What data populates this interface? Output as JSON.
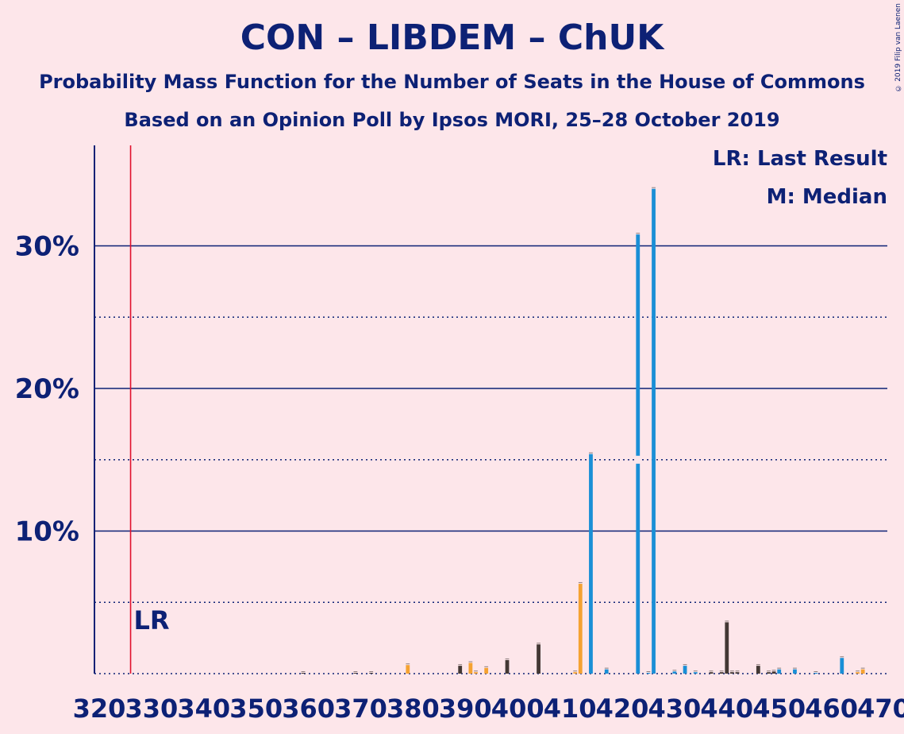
{
  "title": "CON – LIBDEM – ChUK",
  "subtitle1": "Probability Mass Function for the Number of Seats in the House of Commons",
  "subtitle2": "Based on an Opinion Poll by Ipsos MORI, 25–28 October 2019",
  "copyright": "© 2019 Filip van Laenen",
  "legend": {
    "lr": "LR: Last Result",
    "median": "M: Median"
  },
  "chart_data": {
    "type": "bar",
    "x_range": [
      320,
      470
    ],
    "y_range": [
      0,
      37
    ],
    "y_ticks": [
      {
        "value": 10,
        "label": "10%"
      },
      {
        "value": 20,
        "label": "20%"
      },
      {
        "value": 30,
        "label": "30%"
      }
    ],
    "y_minor": [
      5,
      15,
      25
    ],
    "x_ticks": [
      320,
      330,
      340,
      350,
      360,
      370,
      380,
      390,
      400,
      410,
      420,
      430,
      440,
      450,
      460,
      470
    ],
    "last_result": {
      "x": 326,
      "label": "LR"
    },
    "median": {
      "x": 423,
      "label": "M"
    },
    "colors": {
      "blue": "#1a8fd6",
      "orange": "#f5a231",
      "dark": "#433834",
      "lr_line": "#e0102c",
      "axis": "#0d2175"
    },
    "bars": [
      {
        "x": 359,
        "value": 0.05,
        "color": "dark"
      },
      {
        "x": 369,
        "value": 0.04,
        "color": "dark"
      },
      {
        "x": 372,
        "value": 0.05,
        "color": "dark"
      },
      {
        "x": 379,
        "value": 0.6,
        "color": "orange"
      },
      {
        "x": 389,
        "value": 0.55,
        "color": "dark"
      },
      {
        "x": 391,
        "value": 0.75,
        "color": "orange"
      },
      {
        "x": 392,
        "value": 0.1,
        "color": "orange"
      },
      {
        "x": 394,
        "value": 0.4,
        "color": "orange"
      },
      {
        "x": 398,
        "value": 0.95,
        "color": "dark"
      },
      {
        "x": 404,
        "value": 2.05,
        "color": "dark"
      },
      {
        "x": 411,
        "value": 0.1,
        "color": "orange"
      },
      {
        "x": 412,
        "value": 6.3,
        "color": "orange"
      },
      {
        "x": 414,
        "value": 15.4,
        "color": "blue"
      },
      {
        "x": 417,
        "value": 0.3,
        "color": "blue"
      },
      {
        "x": 423,
        "value": 30.8,
        "color": "blue"
      },
      {
        "x": 425,
        "value": 0.05,
        "color": "blue"
      },
      {
        "x": 426,
        "value": 34.0,
        "color": "blue"
      },
      {
        "x": 430,
        "value": 0.15,
        "color": "blue"
      },
      {
        "x": 432,
        "value": 0.55,
        "color": "blue"
      },
      {
        "x": 434,
        "value": 0.1,
        "color": "blue"
      },
      {
        "x": 437,
        "value": 0.1,
        "color": "dark"
      },
      {
        "x": 439,
        "value": 0.1,
        "color": "dark"
      },
      {
        "x": 440,
        "value": 3.6,
        "color": "dark"
      },
      {
        "x": 441,
        "value": 0.1,
        "color": "dark"
      },
      {
        "x": 442,
        "value": 0.1,
        "color": "dark"
      },
      {
        "x": 446,
        "value": 0.55,
        "color": "dark"
      },
      {
        "x": 448,
        "value": 0.1,
        "color": "dark"
      },
      {
        "x": 449,
        "value": 0.15,
        "color": "dark"
      },
      {
        "x": 450,
        "value": 0.3,
        "color": "blue"
      },
      {
        "x": 453,
        "value": 0.3,
        "color": "blue"
      },
      {
        "x": 457,
        "value": 0.05,
        "color": "blue"
      },
      {
        "x": 462,
        "value": 1.1,
        "color": "blue"
      },
      {
        "x": 465,
        "value": 0.1,
        "color": "orange"
      },
      {
        "x": 466,
        "value": 0.3,
        "color": "orange"
      }
    ]
  }
}
